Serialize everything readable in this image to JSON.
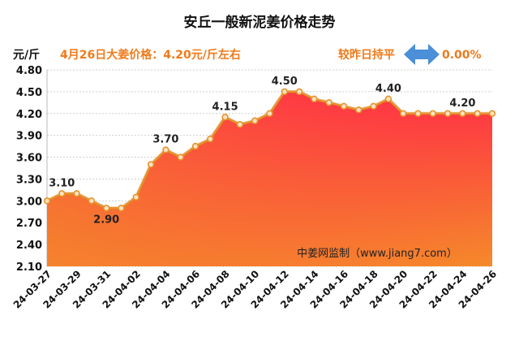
{
  "chart_data": {
    "type": "area",
    "title": "安丘一般新泥姜价格走势",
    "ylabel": "元/斤",
    "subtitle": "4月26日大姜价格：4.20元/斤左右",
    "change_label": "较昨日持平",
    "change_value": "0.00%",
    "watermark": "中姜网监制（www.jiang7.com）",
    "ylim": [
      2.1,
      4.8
    ],
    "yticks": [
      "4.80",
      "4.50",
      "4.20",
      "3.90",
      "3.60",
      "3.30",
      "3.00",
      "2.70",
      "2.40",
      "2.10"
    ],
    "xticks": [
      "24-03-27",
      "24-03-29",
      "24-03-31",
      "24-04-02",
      "24-04-04",
      "24-04-06",
      "24-04-08",
      "24-04-10",
      "24-04-12",
      "24-04-14",
      "24-04-16",
      "24-04-18",
      "24-04-20",
      "24-04-22",
      "24-04-24",
      "24-04-26"
    ],
    "x": [
      "24-03-27",
      "24-03-28",
      "24-03-29",
      "24-03-30",
      "24-03-31",
      "24-04-01",
      "24-04-02",
      "24-04-03",
      "24-04-04",
      "24-04-05",
      "24-04-06",
      "24-04-07",
      "24-04-08",
      "24-04-09",
      "24-04-10",
      "24-04-11",
      "24-04-12",
      "24-04-13",
      "24-04-14",
      "24-04-15",
      "24-04-16",
      "24-04-17",
      "24-04-18",
      "24-04-19",
      "24-04-20",
      "24-04-21",
      "24-04-22",
      "24-04-23",
      "24-04-24",
      "24-04-25",
      "24-04-26"
    ],
    "values": [
      3.0,
      3.1,
      3.1,
      3.0,
      2.9,
      2.9,
      3.05,
      3.5,
      3.7,
      3.6,
      3.75,
      3.85,
      4.15,
      4.05,
      4.1,
      4.2,
      4.5,
      4.5,
      4.4,
      4.35,
      4.3,
      4.25,
      4.3,
      4.4,
      4.2,
      4.2,
      4.2,
      4.2,
      4.2,
      4.2,
      4.2
    ],
    "point_labels": [
      {
        "index": 1,
        "text": "3.10"
      },
      {
        "index": 4,
        "text": "2.90"
      },
      {
        "index": 8,
        "text": "3.70"
      },
      {
        "index": 12,
        "text": "4.15"
      },
      {
        "index": 16,
        "text": "4.50"
      },
      {
        "index": 23,
        "text": "4.40"
      },
      {
        "index": 28,
        "text": "4.20"
      }
    ],
    "grid": true,
    "colors": {
      "line": "#e8922c",
      "marker_fill": "#f6e3c2",
      "fill_top": "#ff2f45",
      "fill_bottom": "#f58a2a",
      "subtitle": "#f07a1a",
      "change_value": "#f07a1a",
      "arrow": "#4a8fd8",
      "grid": "#cfcfcf"
    }
  }
}
